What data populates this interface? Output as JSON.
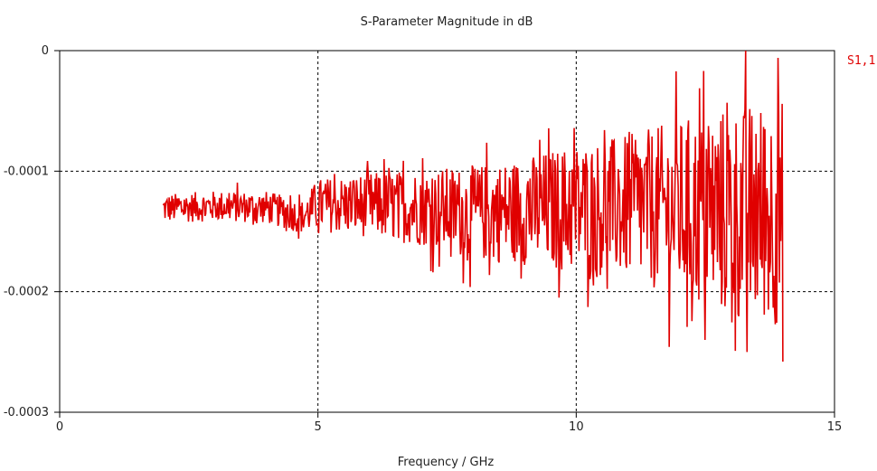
{
  "chart_data": {
    "type": "line",
    "title": "S-Parameter Magnitude in dB",
    "xlabel": "Frequency / GHz",
    "ylabel": "",
    "xlim": [
      0,
      15
    ],
    "ylim": [
      -0.0003,
      0
    ],
    "x_ticks": [
      0,
      5,
      10,
      15
    ],
    "x_tick_labels": [
      "0",
      "5",
      "10",
      "15"
    ],
    "y_ticks": [
      0,
      -0.0001,
      -0.0002,
      -0.0003
    ],
    "y_tick_labels": [
      "0",
      "-0.0001",
      "-0.0002",
      "-0.0003"
    ],
    "grid": "dashed",
    "legend_placement": "right",
    "series": [
      {
        "name": "S1,1",
        "color": "#e00000",
        "x_start": 2.0,
        "x_end": 14.0,
        "baseline": [
          [
            2.0,
            -0.000131
          ],
          [
            3.0,
            -0.000129
          ],
          [
            4.0,
            -0.00013
          ],
          [
            4.7,
            -0.000138
          ],
          [
            5.0,
            -0.000128
          ],
          [
            6.0,
            -0.000128
          ],
          [
            7.0,
            -0.00013
          ],
          [
            8.0,
            -0.000135
          ],
          [
            9.0,
            -0.000133
          ],
          [
            10.0,
            -0.000131
          ],
          [
            11.0,
            -0.00013
          ],
          [
            12.0,
            -0.000132
          ],
          [
            13.0,
            -0.000135
          ],
          [
            14.0,
            -0.000135
          ]
        ],
        "amplitude": [
          [
            2.0,
            1.2e-05
          ],
          [
            4.7,
            1.4e-05
          ],
          [
            5.0,
            2.2e-05
          ],
          [
            7.0,
            3.2e-05
          ],
          [
            8.0,
            4e-05
          ],
          [
            9.0,
            4.5e-05
          ],
          [
            10.0,
            5.5e-05
          ],
          [
            11.0,
            6e-05
          ],
          [
            12.0,
            7.5e-05
          ],
          [
            13.0,
            9e-05
          ],
          [
            14.0,
            9.5e-05
          ]
        ],
        "extremes": [
          [
            13.3,
            -8.5e-06
          ],
          [
            13.9,
            -6e-06
          ],
          [
            14.0,
            -0.000258
          ],
          [
            13.3,
            -0.00025
          ],
          [
            12.5,
            -0.00024
          ],
          [
            10.5,
            -0.00018
          ]
        ]
      }
    ]
  }
}
